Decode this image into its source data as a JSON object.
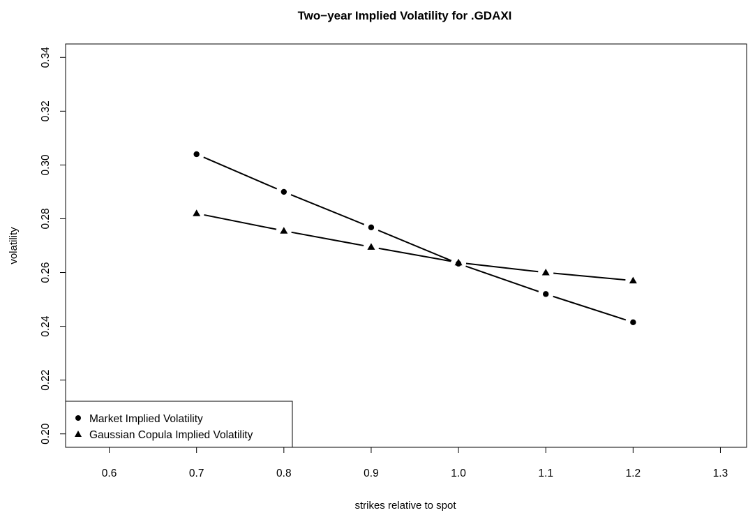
{
  "chart_data": {
    "type": "line",
    "title": "Two−year Implied Volatility for .GDAXI",
    "xlabel": "strikes relative to spot",
    "ylabel": "volatility",
    "xlim": [
      0.55,
      1.33
    ],
    "ylim": [
      0.195,
      0.345
    ],
    "x_ticks": [
      "0.6",
      "0.7",
      "0.8",
      "0.9",
      "1.0",
      "1.1",
      "1.2",
      "1.3"
    ],
    "y_ticks": [
      "0.20",
      "0.22",
      "0.24",
      "0.26",
      "0.28",
      "0.30",
      "0.32",
      "0.34"
    ],
    "x": [
      0.7,
      0.8,
      0.9,
      1.0,
      1.1,
      1.2
    ],
    "series": [
      {
        "name": "Market Implied Volatility",
        "marker": "circle",
        "values": [
          0.304,
          0.29,
          0.2768,
          0.2633,
          0.252,
          0.2415
        ]
      },
      {
        "name": "Gaussian Copula Implied Volatility",
        "marker": "triangle",
        "values": [
          0.282,
          0.2755,
          0.2695,
          0.2637,
          0.26,
          0.257
        ]
      }
    ],
    "legend_position": "bottom-left",
    "grid": false
  }
}
